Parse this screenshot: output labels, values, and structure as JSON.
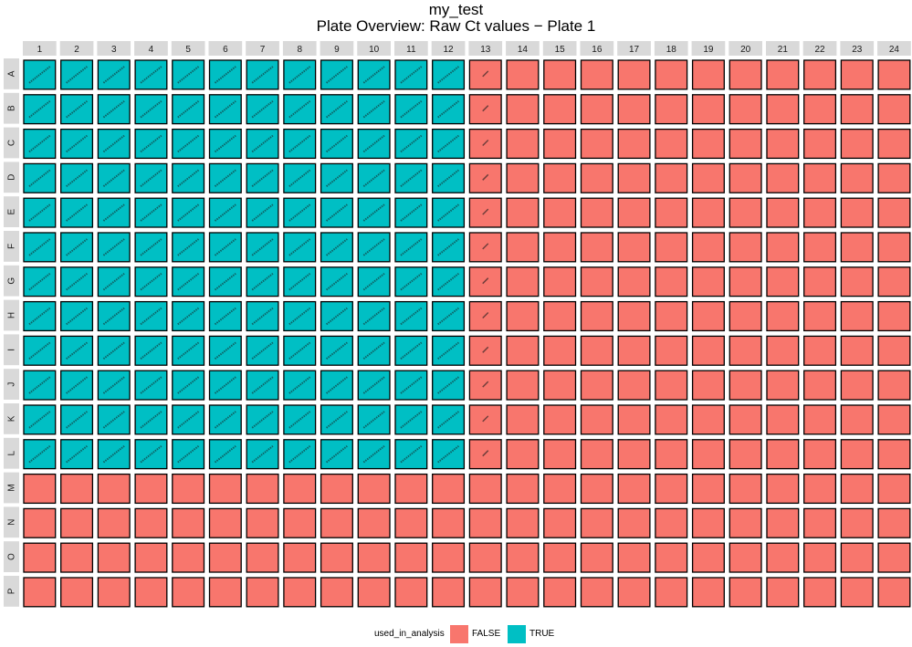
{
  "chart_data": {
    "type": "heatmap",
    "title": "my_test",
    "subtitle": "Plate Overview: Raw Ct values − Plate 1",
    "columns": [
      "1",
      "2",
      "3",
      "4",
      "5",
      "6",
      "7",
      "8",
      "9",
      "10",
      "11",
      "12",
      "13",
      "14",
      "15",
      "16",
      "17",
      "18",
      "19",
      "20",
      "21",
      "22",
      "23",
      "24"
    ],
    "rows": [
      "A",
      "B",
      "C",
      "D",
      "E",
      "F",
      "G",
      "H",
      "I",
      "J",
      "K",
      "L",
      "M",
      "N",
      "O",
      "P"
    ],
    "fill_variable": "used_in_analysis",
    "true_region": {
      "rows": [
        "A",
        "B",
        "C",
        "D",
        "E",
        "F",
        "G",
        "H",
        "I",
        "J",
        "K",
        "L"
      ],
      "columns": [
        "1",
        "2",
        "3",
        "4",
        "5",
        "6",
        "7",
        "8",
        "9",
        "10",
        "11",
        "12"
      ]
    },
    "labeled_false_column": "13",
    "legend": {
      "title": "used_in_analysis",
      "position": "bottom",
      "entries": [
        {
          "label": "FALSE",
          "color": "#F8766D"
        },
        {
          "label": "TRUE",
          "color": "#00BFC4"
        }
      ]
    }
  }
}
